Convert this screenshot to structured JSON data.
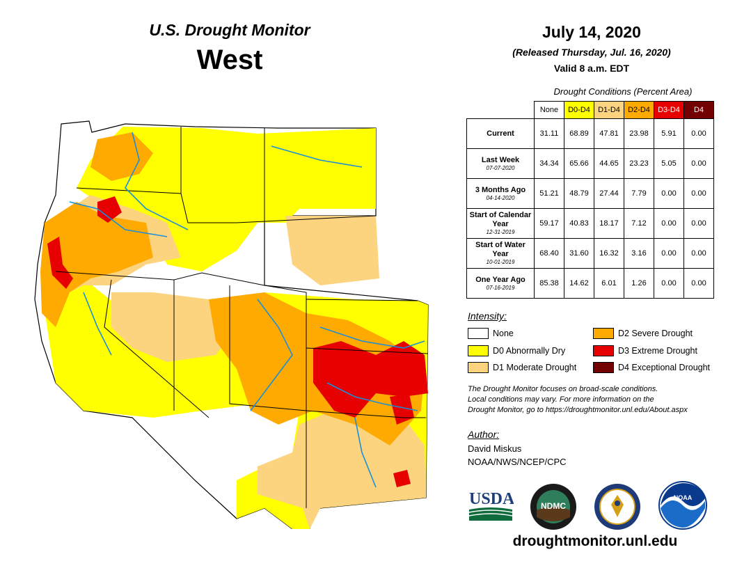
{
  "header": {
    "title": "U.S. Drought Monitor",
    "region": "West",
    "date": "July 14, 2020",
    "released": "(Released Thursday, Jul. 16, 2020)",
    "valid": "Valid 8 a.m. EDT"
  },
  "table": {
    "caption": "Drought Conditions (Percent Area)",
    "columns": [
      "None",
      "D0-D4",
      "D1-D4",
      "D2-D4",
      "D3-D4",
      "D4"
    ],
    "rows": [
      {
        "label": "Current",
        "date": "",
        "values": [
          "31.11",
          "68.89",
          "47.81",
          "23.98",
          "5.91",
          "0.00"
        ]
      },
      {
        "label": "Last Week",
        "date": "07-07-2020",
        "values": [
          "34.34",
          "65.66",
          "44.65",
          "23.23",
          "5.05",
          "0.00"
        ]
      },
      {
        "label": "3 Months Ago",
        "date": "04-14-2020",
        "values": [
          "51.21",
          "48.79",
          "27.44",
          "7.79",
          "0.00",
          "0.00"
        ]
      },
      {
        "label": "Start of Calendar Year",
        "date": "12-31-2019",
        "values": [
          "59.17",
          "40.83",
          "18.17",
          "7.12",
          "0.00",
          "0.00"
        ]
      },
      {
        "label": "Start of Water Year",
        "date": "10-01-2019",
        "values": [
          "68.40",
          "31.60",
          "16.32",
          "3.16",
          "0.00",
          "0.00"
        ]
      },
      {
        "label": "One Year Ago",
        "date": "07-16-2019",
        "values": [
          "85.38",
          "14.62",
          "6.01",
          "1.26",
          "0.00",
          "0.00"
        ]
      }
    ]
  },
  "legend": {
    "title": "Intensity:",
    "items": [
      {
        "label": "None",
        "color": "#ffffff"
      },
      {
        "label": "D0 Abnormally Dry",
        "color": "#ffff00"
      },
      {
        "label": "D1 Moderate Drought",
        "color": "#fcd37f"
      },
      {
        "label": "D2 Severe Drought",
        "color": "#ffaa00"
      },
      {
        "label": "D3 Extreme Drought",
        "color": "#e60000"
      },
      {
        "label": "D4 Exceptional Drought",
        "color": "#730000"
      }
    ]
  },
  "note": {
    "line1": "The Drought Monitor focuses on broad-scale conditions.",
    "line2": "Local conditions may vary. For more information on the",
    "line3": "Drought Monitor, go to https://droughtmonitor.unl.edu/About.aspx"
  },
  "author": {
    "label": "Author:",
    "name": "David Miskus",
    "org": "NOAA/NWS/NCEP/CPC"
  },
  "logos": {
    "usda": "USDA",
    "ndmc": "NDMC",
    "noaa": "NOAA"
  },
  "website": "droughtmonitor.unl.edu"
}
